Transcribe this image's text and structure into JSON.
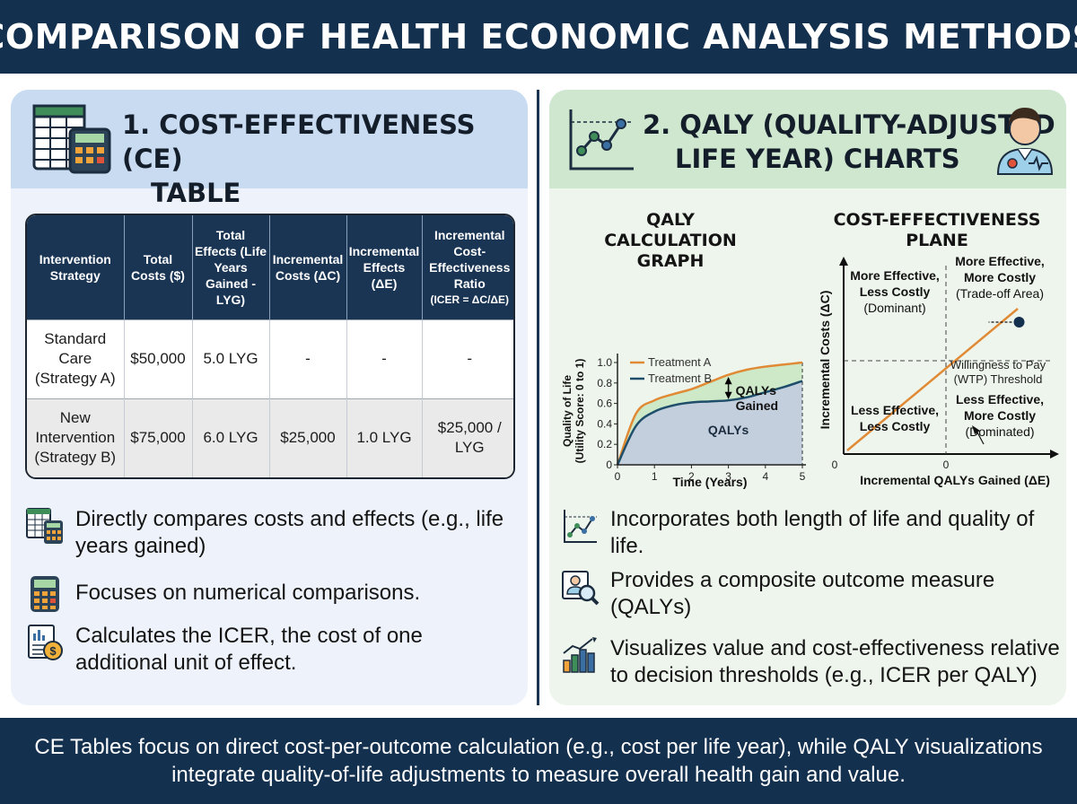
{
  "title": "COMPARISON OF HEALTH ECONOMIC ANALYSIS METHODS",
  "left": {
    "title_line1": "1. COST-EFFECTIVENESS (CE)",
    "title_line2": "TABLE",
    "table": {
      "headers": [
        {
          "label": "Intervention Strategy"
        },
        {
          "label": "Total Costs ($)"
        },
        {
          "label": "Total Effects (Life Years Gained - LYG)"
        },
        {
          "label": "Incremental Costs (ΔC)"
        },
        {
          "label": "Incremental Effects (ΔE)"
        },
        {
          "label": "Incremental Cost-Effectiveness Ratio",
          "sub": "(ICER = ΔC/ΔE)"
        }
      ],
      "rows": [
        [
          "Standard Care (Strategy A)",
          "$50,000",
          "5.0 LYG",
          "-",
          "-",
          "-"
        ],
        [
          "New Intervention (Strategy B)",
          "$75,000",
          "6.0 LYG",
          "$25,000",
          "1.0 LYG",
          "$25,000 / LYG"
        ]
      ]
    },
    "bullets": [
      {
        "icon": "spreadsheet-calculator-icon",
        "text": "Directly compares costs and effects (e.g., life years gained)"
      },
      {
        "icon": "calculator-icon",
        "text": "Focuses on numerical comparisons."
      },
      {
        "icon": "report-coin-icon",
        "text": "Calculates the ICER, the cost of one additional unit of effect."
      }
    ]
  },
  "right": {
    "title_line1": "2. QALY (QUALITY-ADJUSTED",
    "title_line2": "LIFE YEAR) CHARTS",
    "qaly_graph": {
      "title": "QALY CALCULATION GRAPH",
      "xlabel": "Time (Years)",
      "ylabel_line1": "Quality of Life",
      "ylabel_line2": "(Utility Score: 0 to 1)",
      "x_ticks": [
        "0",
        "1",
        "2",
        "3",
        "4",
        "5"
      ],
      "y_ticks": [
        "0",
        "0.2",
        "0.4",
        "0.6",
        "0.8",
        "1.0"
      ],
      "legend": [
        "Treatment A",
        "Treatment B"
      ],
      "gain_label_line1": "QALYs",
      "gain_label_line2": "Gained",
      "area_label": "QALYs"
    },
    "ce_plane": {
      "title": "COST-EFFECTIVENESS PLANE",
      "xlabel": "Incremental QALYs Gained (ΔE)",
      "ylabel": "Incremental Costs (ΔC)",
      "x_origin": "0",
      "x_mid": "0",
      "quadrants": {
        "top_left": [
          "More Effective,",
          "Less Costly",
          "(Dominant)"
        ],
        "top_right": [
          "More Effective,",
          "More Costly",
          "(Trade-off Area)"
        ],
        "bottom_left": [
          "Less Effective,",
          "Less Costly"
        ],
        "bottom_right": [
          "Less Effective,",
          "More Costly",
          "(Dominated)"
        ]
      },
      "wtp_line1": "Willingness to Pay",
      "wtp_line2": "(WTP) Threshold"
    },
    "bullets": [
      {
        "icon": "line-chart-icon",
        "text": "Incorporates both length of life and quality of life."
      },
      {
        "icon": "person-magnifier-icon",
        "text": "Provides a composite outcome measure (QALYs)"
      },
      {
        "icon": "bar-chart-trend-icon",
        "text": "Visualizes value and cost-effectiveness relative to decision thresholds (e.g., ICER per QALY)"
      }
    ]
  },
  "footer": "CE Tables focus on direct cost-per-outcome calculation (e.g., cost per life year), while QALY visualizations integrate quality-of-life adjustments to measure overall health gain and value.",
  "chart_data": [
    {
      "type": "line",
      "title": "QALY CALCULATION GRAPH",
      "xlabel": "Time (Years)",
      "ylabel": "Quality of Life (Utility Score: 0 to 1)",
      "xlim": [
        0,
        5
      ],
      "ylim": [
        0,
        1
      ],
      "x": [
        0,
        0.5,
        1,
        1.5,
        2,
        2.5,
        3,
        3.5,
        4,
        4.5,
        5
      ],
      "series": [
        {
          "name": "Treatment A",
          "values": [
            0,
            0.5,
            0.63,
            0.69,
            0.74,
            0.81,
            0.88,
            0.93,
            0.96,
            0.98,
            1.0
          ]
        },
        {
          "name": "Treatment B",
          "values": [
            0,
            0.38,
            0.52,
            0.58,
            0.61,
            0.62,
            0.63,
            0.66,
            0.71,
            0.76,
            0.82
          ]
        }
      ],
      "legend": "top"
    },
    {
      "type": "scatter",
      "title": "COST-EFFECTIVENESS PLANE",
      "xlabel": "Incremental QALYs Gained (ΔE)",
      "ylabel": "Incremental Costs (ΔC)",
      "points": [
        {
          "x": 0.85,
          "y": 0.7
        }
      ],
      "threshold_line": {
        "label": "Willingness to Pay (WTP) Threshold"
      }
    }
  ],
  "colors": {
    "navy": "#14304f",
    "treatment_a": "#e08a35",
    "treatment_b": "#1f4e6b",
    "gain_fill": "#cde9c8",
    "area_fill": "#c3cfdc"
  }
}
